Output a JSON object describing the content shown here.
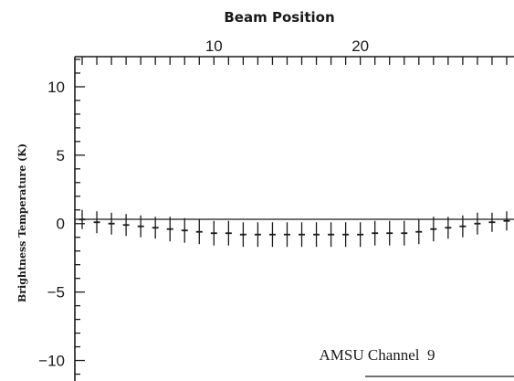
{
  "chart_data": {
    "type": "scatter",
    "title": "",
    "x_axis": {
      "label": "Beam Position",
      "position": "top",
      "range": [
        0.5,
        30.5
      ],
      "tick_labels": [
        10,
        20
      ]
    },
    "y_axis": {
      "label": "Brightness Temperature (K)",
      "range": [
        -11.5,
        12.2
      ],
      "tick_labels": [
        -10,
        -5,
        0,
        5,
        10
      ]
    },
    "annotation": "AMSU Channel  9",
    "zero_line": true,
    "grid": false,
    "legend": "none",
    "series": [
      {
        "points": [
          {
            "x": 1,
            "y": 0.3,
            "err": 0.7
          },
          {
            "x": 2,
            "y": 0.1,
            "err": 0.8
          },
          {
            "x": 3,
            "y": 0.0,
            "err": 0.8
          },
          {
            "x": 4,
            "y": -0.1,
            "err": 0.8
          },
          {
            "x": 5,
            "y": -0.2,
            "err": 0.8
          },
          {
            "x": 6,
            "y": -0.3,
            "err": 0.8
          },
          {
            "x": 7,
            "y": -0.4,
            "err": 0.9
          },
          {
            "x": 8,
            "y": -0.5,
            "err": 0.9
          },
          {
            "x": 9,
            "y": -0.6,
            "err": 0.9
          },
          {
            "x": 10,
            "y": -0.7,
            "err": 0.9
          },
          {
            "x": 11,
            "y": -0.7,
            "err": 0.9
          },
          {
            "x": 12,
            "y": -0.8,
            "err": 0.9
          },
          {
            "x": 13,
            "y": -0.8,
            "err": 0.9
          },
          {
            "x": 14,
            "y": -0.8,
            "err": 0.9
          },
          {
            "x": 15,
            "y": -0.8,
            "err": 0.9
          },
          {
            "x": 16,
            "y": -0.8,
            "err": 0.9
          },
          {
            "x": 17,
            "y": -0.8,
            "err": 0.9
          },
          {
            "x": 18,
            "y": -0.8,
            "err": 0.9
          },
          {
            "x": 19,
            "y": -0.8,
            "err": 0.9
          },
          {
            "x": 20,
            "y": -0.8,
            "err": 0.9
          },
          {
            "x": 21,
            "y": -0.7,
            "err": 0.9
          },
          {
            "x": 22,
            "y": -0.7,
            "err": 0.9
          },
          {
            "x": 23,
            "y": -0.7,
            "err": 0.9
          },
          {
            "x": 24,
            "y": -0.6,
            "err": 0.9
          },
          {
            "x": 25,
            "y": -0.4,
            "err": 0.9
          },
          {
            "x": 26,
            "y": -0.3,
            "err": 0.8
          },
          {
            "x": 27,
            "y": -0.2,
            "err": 0.8
          },
          {
            "x": 28,
            "y": 0.0,
            "err": 0.8
          },
          {
            "x": 29,
            "y": 0.1,
            "err": 0.7
          },
          {
            "x": 30,
            "y": 0.2,
            "err": 0.7
          }
        ]
      }
    ]
  }
}
